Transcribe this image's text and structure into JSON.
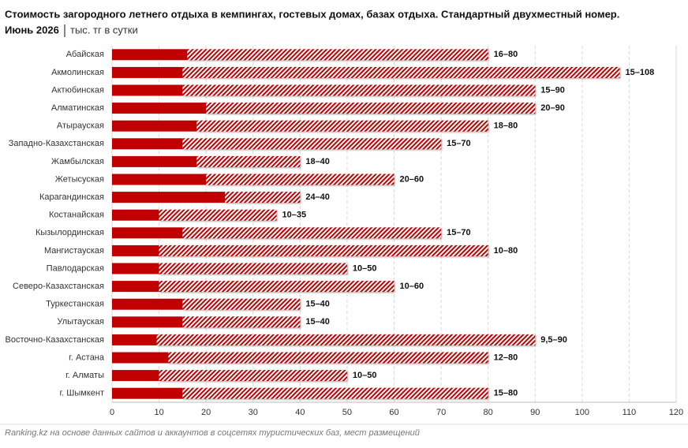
{
  "chart_data": {
    "type": "range-bar",
    "title": "Стоимость загородного летнего отдыха в кемпингах, гостевых домах, базах отдыха. Стандартный двухместный номер.",
    "date": "Июнь 2026",
    "unit": "тыс. тг в сутки",
    "source": "Ranking.kz на основе данных сайтов и аккаунтов в соцсетях туристических баз, мест размещений",
    "categories": [
      "Абайская",
      "Акмолинская",
      "Актюбинская",
      "Алматинская",
      "Атырауская",
      "Западно-Казахстанская",
      "Жамбылская",
      "Жетысуская",
      "Карагандинская",
      "Костанайская",
      "Кызылординская",
      "Мангистауская",
      "Павлодарская",
      "Северо-Казахстанская",
      "Туркестанская",
      "Улытауская",
      "Восточно-Казахстанская",
      "г. Астана",
      "г. Алматы",
      "г. Шымкент"
    ],
    "low": [
      16,
      15,
      15,
      20,
      18,
      15,
      18,
      20,
      24,
      10,
      15,
      10,
      10,
      10,
      15,
      15,
      9.5,
      12,
      10,
      15
    ],
    "high": [
      80,
      108,
      90,
      90,
      80,
      70,
      40,
      60,
      40,
      35,
      70,
      80,
      50,
      60,
      40,
      40,
      90,
      80,
      50,
      80
    ],
    "value_labels": [
      "16–80",
      "15–108",
      "15–90",
      "20–90",
      "18–80",
      "15–70",
      "18–40",
      "20–60",
      "24–40",
      "10–35",
      "15–70",
      "10–80",
      "10–50",
      "10–60",
      "15–40",
      "15–40",
      "9,5–90",
      "12–80",
      "10–50",
      "15–80"
    ],
    "color": "#c00000",
    "xlim": [
      0,
      120
    ],
    "xticks": [
      0,
      10,
      20,
      30,
      40,
      50,
      60,
      70,
      80,
      90,
      100,
      110,
      120
    ],
    "grid": true
  }
}
